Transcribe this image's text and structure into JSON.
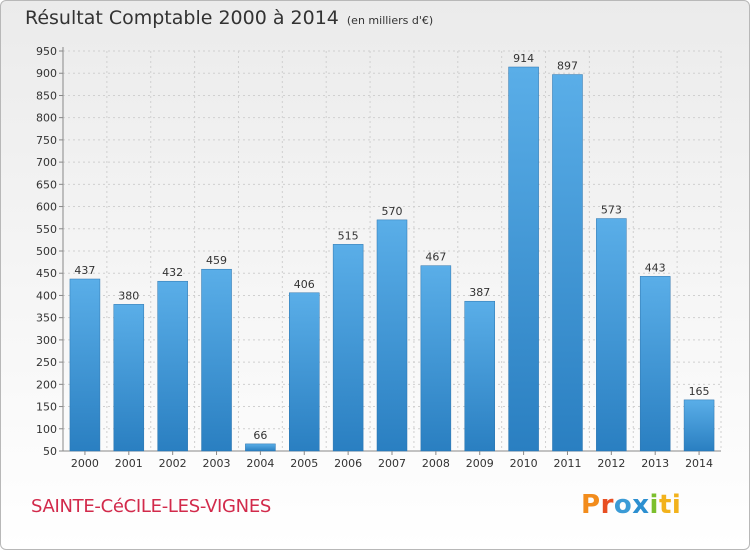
{
  "header": {
    "title": "Résultat Comptable 2000 à 2014",
    "subtitle": "(en milliers d'€)"
  },
  "commune_name": "SAINTE-CéCILE-LES-VIGNES",
  "logo": {
    "text": "Proxiti",
    "letters": [
      "P",
      "r",
      "o",
      "x",
      "i",
      "ti"
    ]
  },
  "colors": {
    "bar_light": "#5aaee8",
    "bar_dark": "#2a7fc1",
    "title": "#333333",
    "commune": "#d22a4b"
  },
  "chart_data": {
    "type": "bar",
    "title": "Résultat Comptable 2000 à 2014",
    "subtitle": "(en milliers d'€)",
    "xlabel": "",
    "ylabel": "",
    "categories": [
      "2000",
      "2001",
      "2002",
      "2003",
      "2004",
      "2005",
      "2006",
      "2007",
      "2008",
      "2009",
      "2010",
      "2011",
      "2012",
      "2013",
      "2014"
    ],
    "values": [
      437,
      380,
      432,
      459,
      66,
      406,
      515,
      570,
      467,
      387,
      914,
      897,
      573,
      443,
      165
    ],
    "ylim": [
      50,
      950
    ],
    "yticks": [
      50,
      100,
      150,
      200,
      250,
      300,
      350,
      400,
      450,
      500,
      550,
      600,
      650,
      700,
      750,
      800,
      850,
      900,
      950
    ],
    "grid": true,
    "legend": "none"
  }
}
